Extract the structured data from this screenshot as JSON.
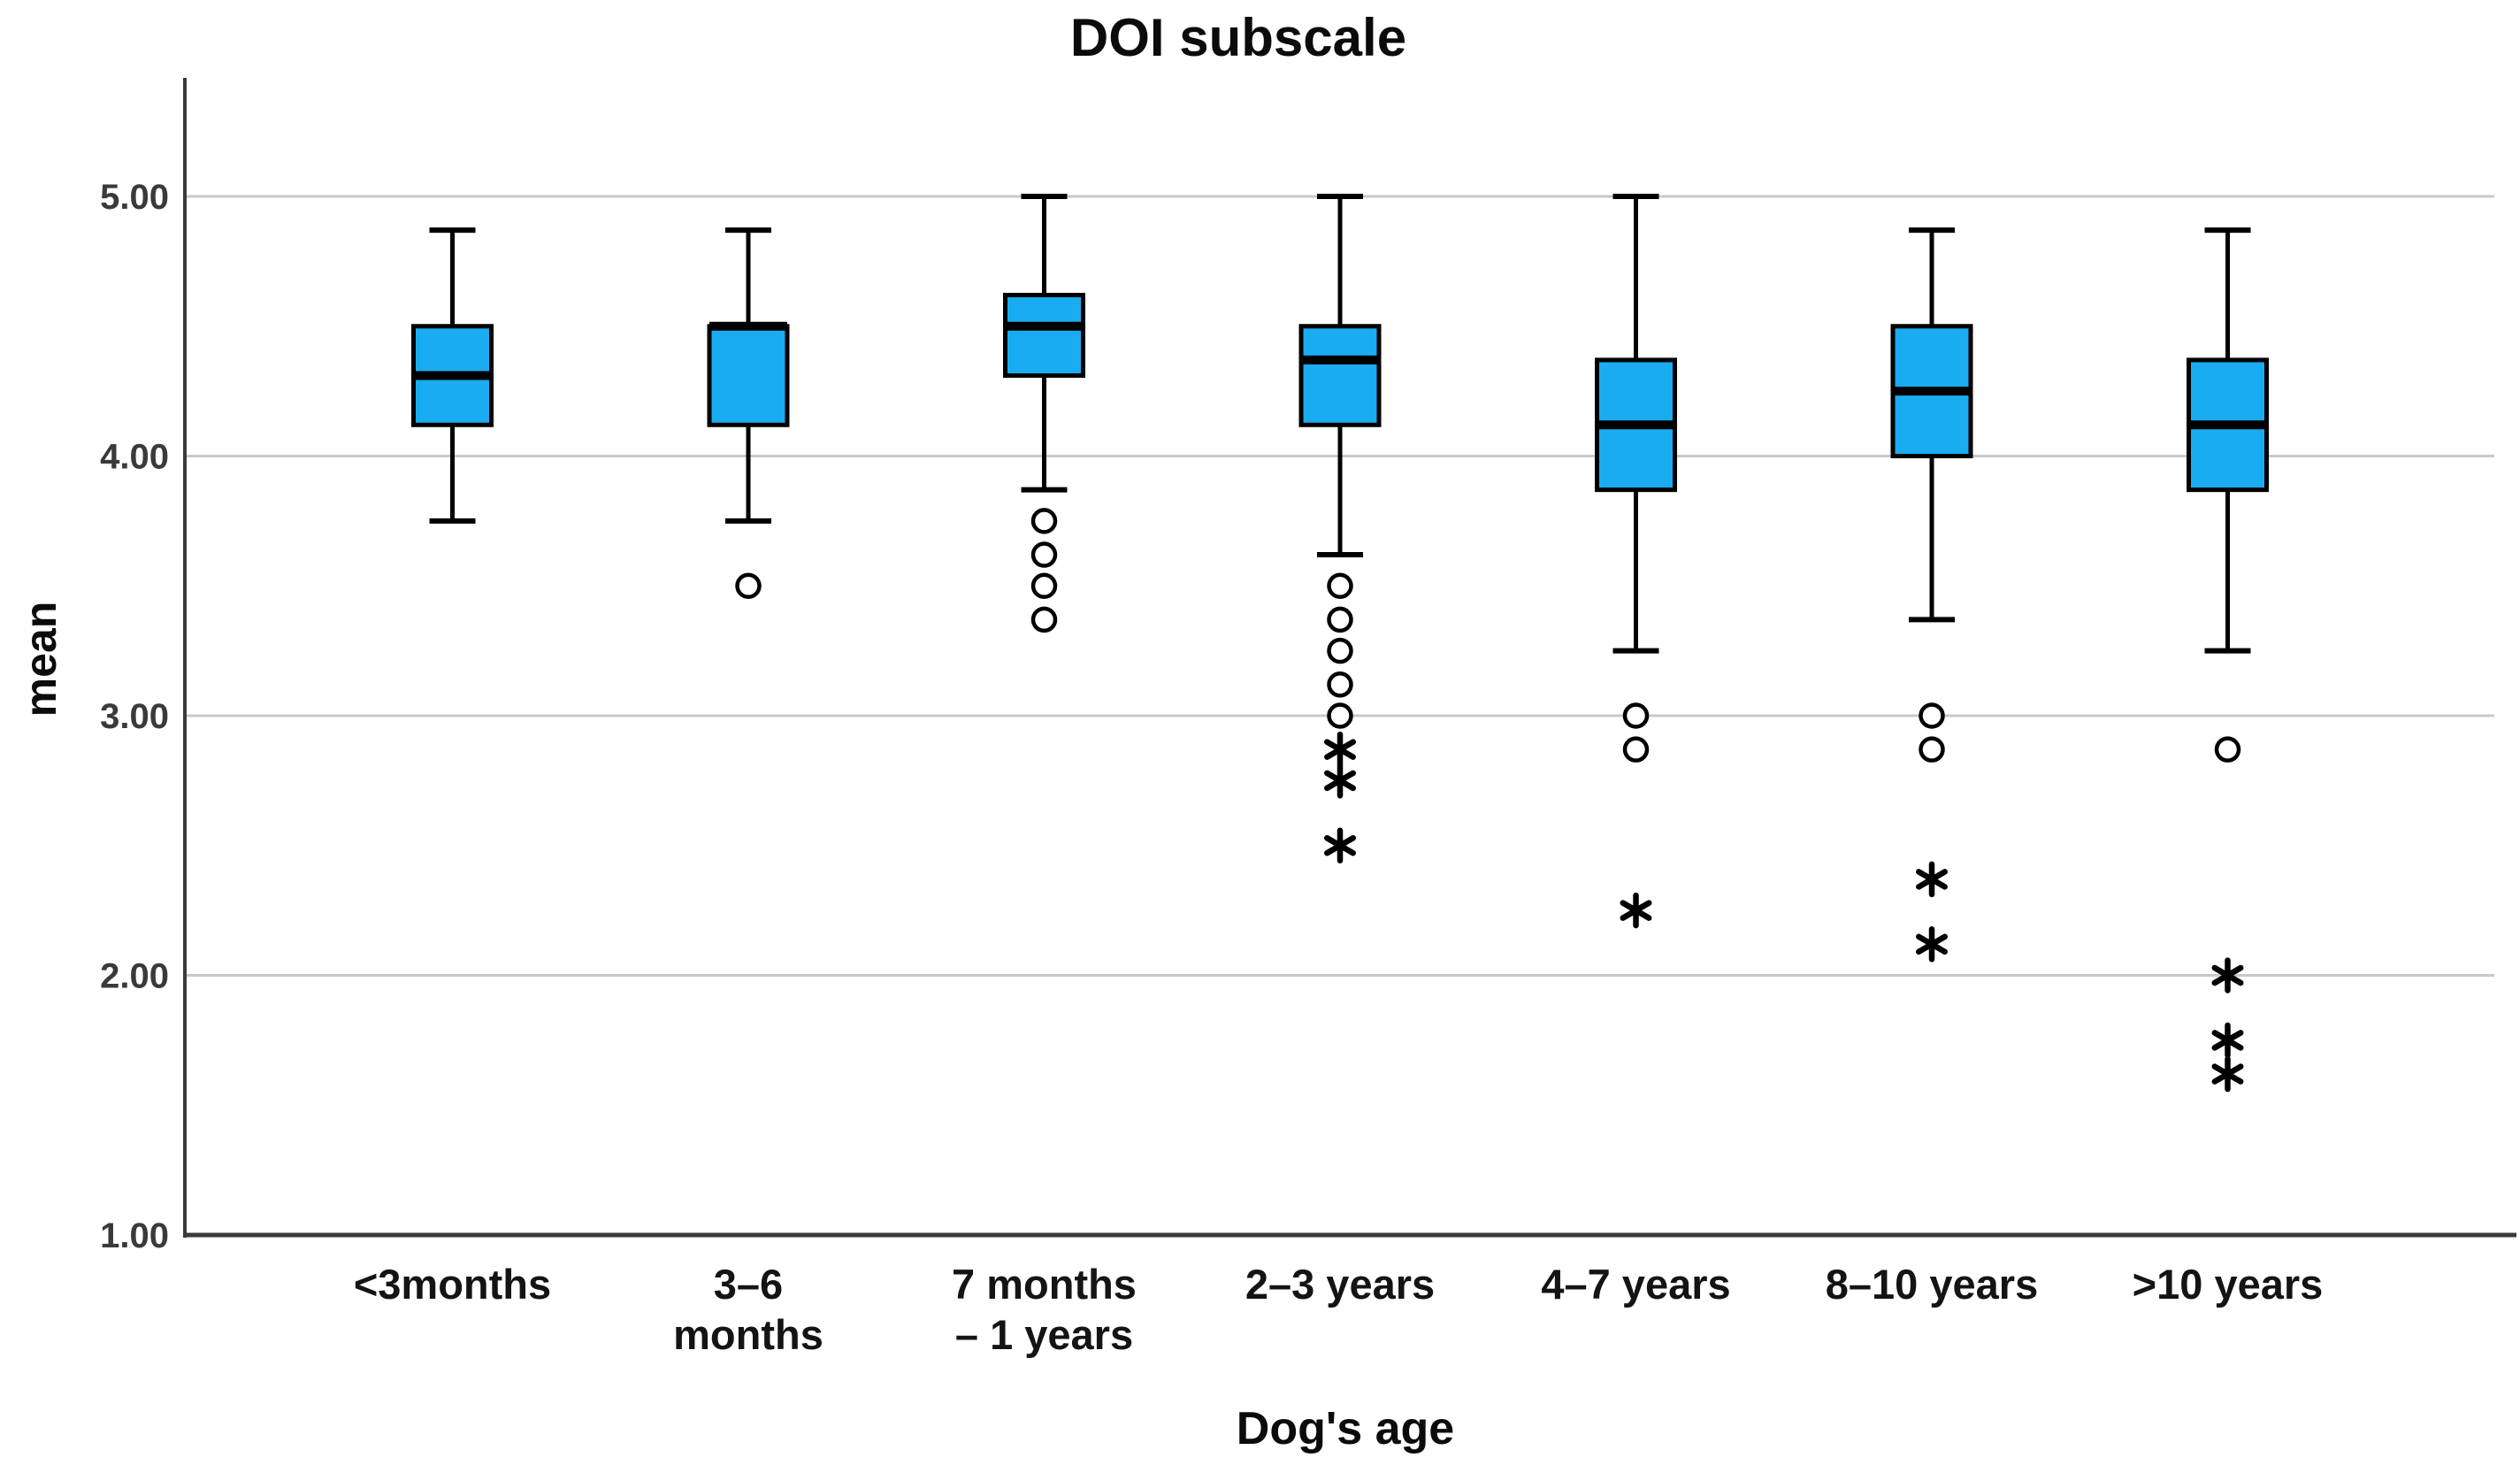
{
  "chart_data": {
    "type": "boxplot",
    "title": "DOI subscale",
    "xlabel": "Dog's age",
    "ylabel": "mean",
    "ylim": [
      1.0,
      5.0
    ],
    "ytick_labels": [
      "5.00",
      "4.00",
      "3.00",
      "2.00",
      "1.00"
    ],
    "grid": true,
    "legend": false,
    "marker_legend": {
      "circle": "outlier",
      "asterisk": "extreme value"
    },
    "colors": {
      "box_fill": "#19acf0",
      "box_border": "#000000",
      "median": "#000000",
      "whisker": "#000000",
      "grid": "#c8c8c8",
      "axis": "#3a3a3a",
      "tick_text": "#3a3a3a",
      "label_text": "#0b0b0b",
      "background": "#ffffff"
    },
    "categories": [
      "<3months",
      "3–6 months",
      "7 months – 1 years",
      "2–3 years",
      "4–7 years",
      "8–10 years",
      ">10 years"
    ],
    "boxes": [
      {
        "category": "<3months",
        "label_lines": [
          "<3months"
        ],
        "whisker_low": 3.75,
        "q1": 4.12,
        "median": 4.31,
        "q3": 4.5,
        "whisker_high": 4.87,
        "outliers": [],
        "extremes": []
      },
      {
        "category": "3–6 months",
        "label_lines": [
          "3–6",
          "months"
        ],
        "whisker_low": 3.75,
        "q1": 4.12,
        "median": 4.5,
        "q3": 4.5,
        "whisker_high": 4.87,
        "outliers": [
          3.5
        ],
        "extremes": []
      },
      {
        "category": "7 months – 1 years",
        "label_lines": [
          "7 months",
          "– 1 years"
        ],
        "whisker_low": 3.87,
        "q1": 4.31,
        "median": 4.5,
        "q3": 4.62,
        "whisker_high": 5.0,
        "outliers": [
          3.75,
          3.62,
          3.5,
          3.37
        ],
        "extremes": []
      },
      {
        "category": "2–3 years",
        "label_lines": [
          "2–3 years"
        ],
        "whisker_low": 3.62,
        "q1": 4.12,
        "median": 4.37,
        "q3": 4.5,
        "whisker_high": 5.0,
        "outliers": [
          3.5,
          3.37,
          3.25,
          3.12,
          3.0
        ],
        "extremes": [
          2.87,
          2.75,
          2.5
        ]
      },
      {
        "category": "4–7 years",
        "label_lines": [
          "4–7 years"
        ],
        "whisker_low": 3.25,
        "q1": 3.87,
        "median": 4.12,
        "q3": 4.37,
        "whisker_high": 5.0,
        "outliers": [
          3.0,
          2.87
        ],
        "extremes": [
          2.25
        ]
      },
      {
        "category": "8–10 years",
        "label_lines": [
          "8–10 years"
        ],
        "whisker_low": 3.37,
        "q1": 4.0,
        "median": 4.25,
        "q3": 4.5,
        "whisker_high": 4.87,
        "outliers": [
          3.0,
          2.87
        ],
        "extremes": [
          2.37,
          2.12
        ]
      },
      {
        "category": ">10 years",
        "label_lines": [
          ">10 years"
        ],
        "whisker_low": 3.25,
        "q1": 3.87,
        "median": 4.12,
        "q3": 4.37,
        "whisker_high": 4.87,
        "outliers": [
          2.87
        ],
        "extremes": [
          2.0,
          1.75,
          1.62
        ]
      }
    ]
  }
}
